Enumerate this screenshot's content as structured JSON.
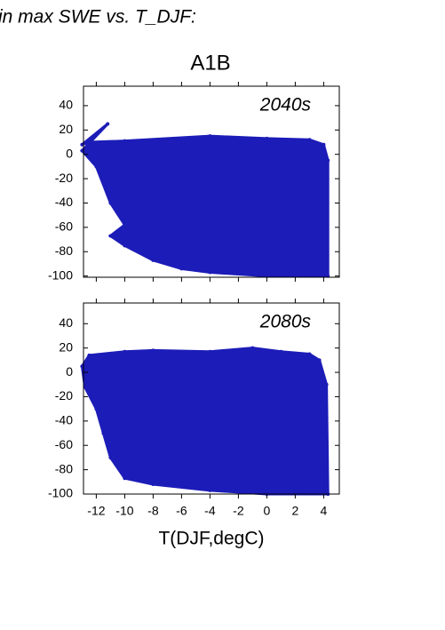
{
  "header": "in max SWE vs. T_DJF:",
  "chart_data": [
    {
      "type": "scatter",
      "title": "A1B",
      "annotation": "2040s",
      "color": "#1c1cb8",
      "x": [
        -13,
        -12.5,
        -10,
        -4,
        0,
        3,
        4,
        4.3,
        4.3,
        0,
        -4,
        -6,
        -8,
        -10,
        -11,
        -10,
        -11,
        -12,
        -13,
        -11.2
      ],
      "values": [
        8,
        10,
        11,
        15,
        13,
        12,
        8,
        -5,
        -100,
        -100,
        -97,
        -94,
        -87,
        -75,
        -67,
        -58,
        -40,
        -10,
        3,
        25
      ],
      "xlim": [
        -12.9,
        5.1
      ],
      "xticks": [
        -12,
        -10,
        -8,
        -6,
        -4,
        -2,
        0,
        2,
        4
      ],
      "ylim": [
        -101,
        56
      ],
      "yticks": [
        -100,
        -80,
        -60,
        -40,
        -20,
        0,
        20,
        40
      ]
    },
    {
      "type": "scatter",
      "annotation": "2080s",
      "xlabel": "T(DJF,degC)",
      "color": "#1c1cb8",
      "x": [
        -12.5,
        -10,
        -8,
        -4,
        -1,
        1,
        3,
        3.7,
        4.2,
        4.3,
        0,
        -4,
        -8,
        -10,
        -11,
        -11.5,
        -12,
        -12.8,
        -13
      ],
      "values": [
        14,
        17,
        18,
        17,
        20,
        17,
        15,
        10,
        -10,
        -100,
        -100,
        -97,
        -92,
        -87,
        -70,
        -50,
        -30,
        -12,
        5
      ],
      "xlim": [
        -12.9,
        5.1
      ],
      "xticks": [
        -12,
        -10,
        -8,
        -6,
        -4,
        -2,
        0,
        2,
        4
      ],
      "ylim": [
        -100,
        57
      ],
      "yticks": [
        -100,
        -80,
        -60,
        -40,
        -20,
        0,
        20,
        40
      ]
    }
  ]
}
